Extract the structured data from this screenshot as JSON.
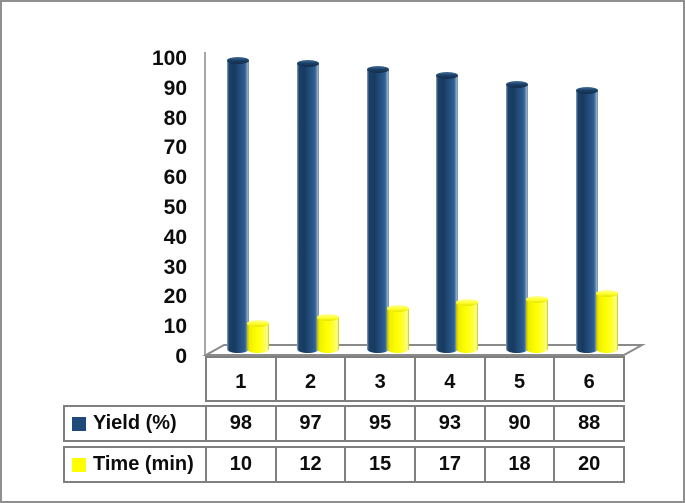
{
  "chart_data": {
    "type": "bar",
    "style": "3d-cylinder",
    "title": "",
    "categories": [
      "1",
      "2",
      "3",
      "4",
      "5",
      "6"
    ],
    "series": [
      {
        "name": "Yield (%)",
        "values": [
          98,
          97,
          95,
          93,
          90,
          88
        ],
        "color": "#1F4978"
      },
      {
        "name": "Time (min)",
        "values": [
          10,
          12,
          15,
          17,
          18,
          20
        ],
        "color": "#FFFF00"
      }
    ],
    "yticks": [
      100,
      90,
      80,
      70,
      60,
      50,
      40,
      30,
      20,
      10,
      0
    ],
    "ylim": [
      0,
      100
    ],
    "xlabel": "",
    "ylabel": "",
    "grid": false,
    "legend_position": "data-table-left",
    "data_table_shown": true
  },
  "colors": {
    "yield_series": "#1F4978",
    "time_series": "#FFFF00",
    "table_border": "#7F7F7F",
    "axis_line": "#A8A8A8",
    "frame_border": "#8F8F8F"
  }
}
